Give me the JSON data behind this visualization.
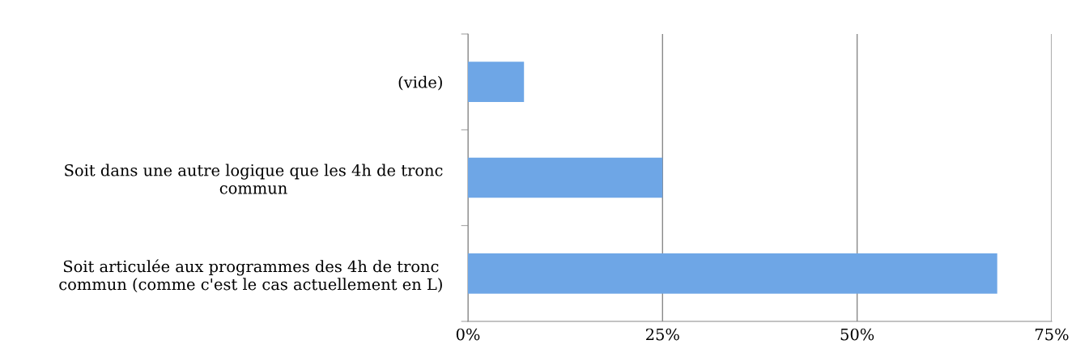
{
  "chart_data": {
    "type": "bar",
    "orientation": "horizontal",
    "categories": [
      "(vide)",
      "Soit dans une autre logique que les 4h de tronc\ncommun",
      "Soit articulée aux programmes des 4h de tronc\ncommun (comme c'est le cas actuellement en L)"
    ],
    "values": [
      7.2,
      25,
      68
    ],
    "color": "#6ea6e6",
    "xlim": [
      0,
      75
    ],
    "xticks": [
      {
        "value": 0,
        "label": "0%"
      },
      {
        "value": 25,
        "label": "25%"
      },
      {
        "value": 50,
        "label": "50%"
      },
      {
        "value": 75,
        "label": "75%"
      }
    ],
    "grid": "x"
  }
}
